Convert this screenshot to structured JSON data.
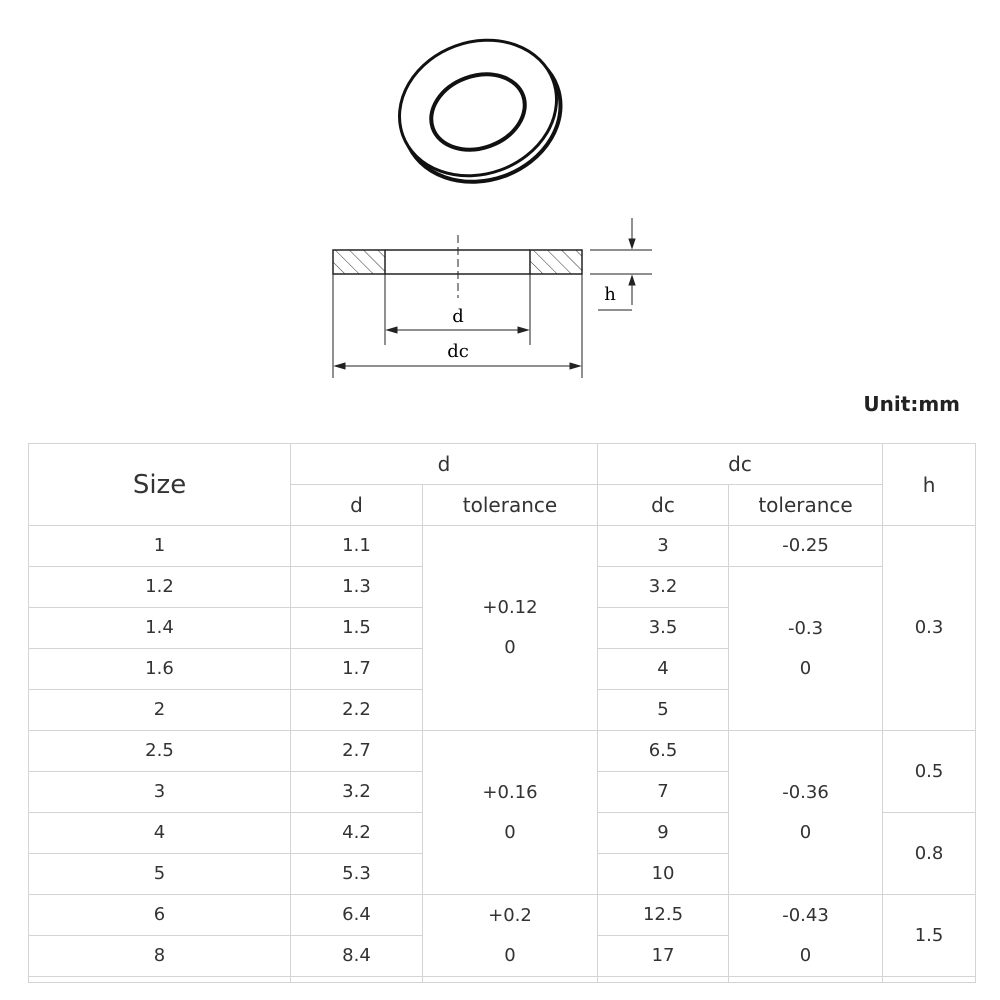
{
  "diagram": {
    "labels": {
      "d": "d",
      "dc": "dc",
      "h": "h"
    }
  },
  "unit": "Unit:mm",
  "table": {
    "header": {
      "size": "Size",
      "d_group": "d",
      "d": "d",
      "d_tolerance": "tolerance",
      "dc_group": "dc",
      "dc": "dc",
      "dc_tolerance": "tolerance",
      "h": "h"
    },
    "rows": [
      [
        "1",
        "1.1",
        "3"
      ],
      [
        "1.2",
        "1.3",
        "3.2"
      ],
      [
        "1.4",
        "1.5",
        "3.5"
      ],
      [
        "1.6",
        "1.7",
        "4"
      ],
      [
        "2",
        "2.2",
        "5"
      ],
      [
        "2.5",
        "2.7",
        "6.5"
      ],
      [
        "3",
        "3.2",
        "7"
      ],
      [
        "4",
        "4.2",
        "9"
      ],
      [
        "5",
        "5.3",
        "10"
      ],
      [
        "6",
        "6.4",
        "12.5"
      ],
      [
        "8",
        "8.4",
        "17"
      ]
    ],
    "d_tolerance": [
      {
        "upper": "+0.12",
        "lower": "0"
      },
      null,
      null,
      null,
      null,
      {
        "upper": "+0.16",
        "lower": "0"
      },
      null,
      null,
      null,
      {
        "upper": "+0.2",
        "lower": "0"
      },
      null
    ],
    "dc_tolerance": [
      {
        "upper": "-0.25"
      },
      {
        "upper": "-0.3",
        "lower": "0"
      },
      null,
      null,
      null,
      {
        "upper": "-0.36",
        "lower": "0"
      },
      null,
      null,
      null,
      {
        "upper": "-0.43",
        "lower": "0"
      },
      null
    ],
    "h": [
      "0.3",
      null,
      null,
      null,
      null,
      "0.5",
      null,
      "0.8",
      null,
      "1.5",
      null
    ]
  }
}
